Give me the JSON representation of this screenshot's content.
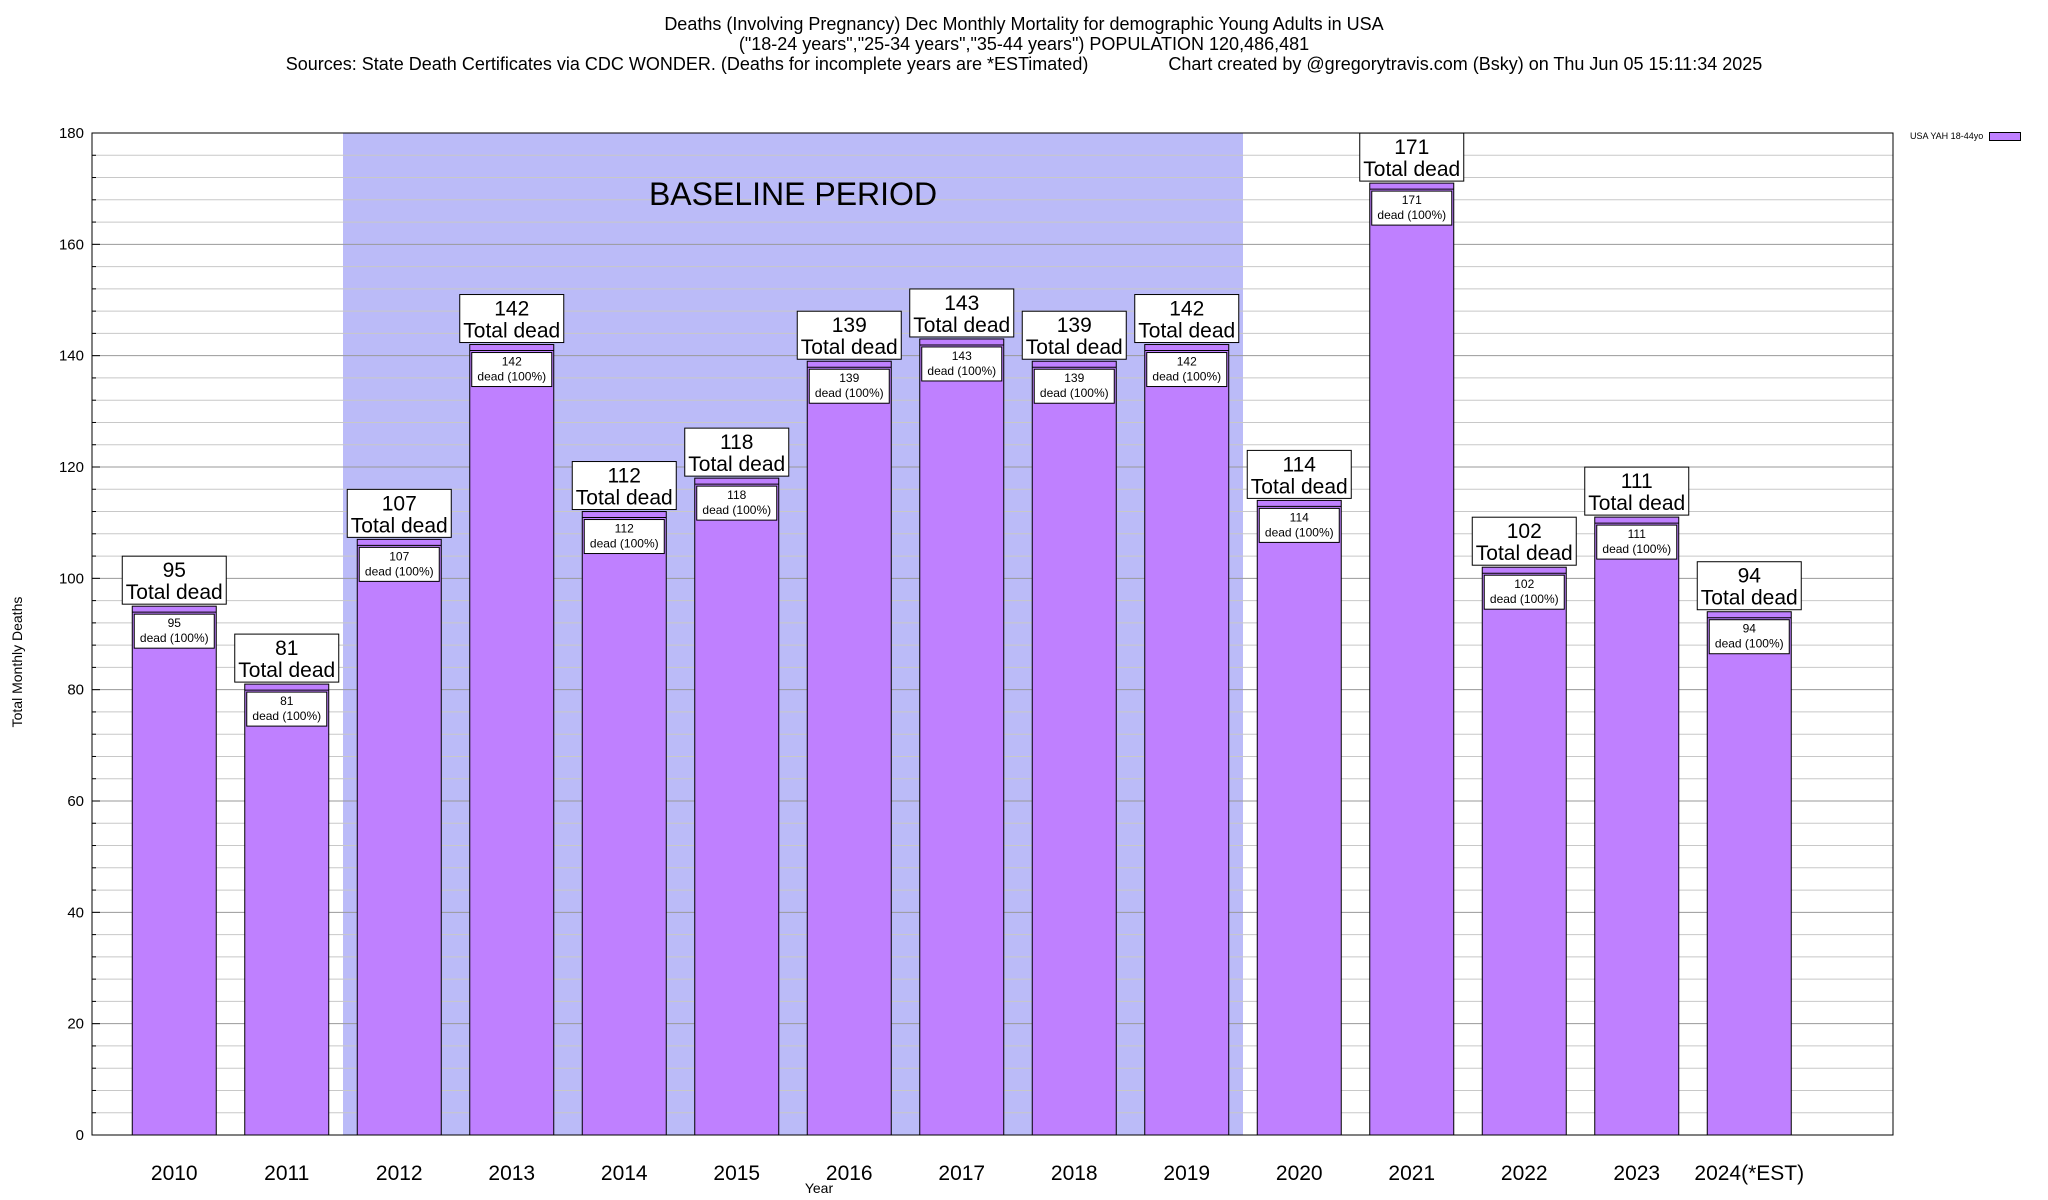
{
  "title": {
    "line1": "Deaths (Involving Pregnancy) Dec Monthly Mortality for demographic Young Adults in USA",
    "line2": "(\"18-24 years\",\"25-34 years\",\"35-44 years\") POPULATION 120,486,481",
    "line3": "Sources: State Death Certificates via CDC WONDER. (Deaths for incomplete years are *ESTimated)                Chart created by @gregorytravis.com (Bsky) on Thu Jun 05 15:11:34 2025"
  },
  "chart_data": {
    "type": "bar",
    "categories": [
      "2010",
      "2011",
      "2012",
      "2013",
      "2014",
      "2015",
      "2016",
      "2017",
      "2018",
      "2019",
      "2020",
      "2021",
      "2022",
      "2023",
      "2024(*EST)"
    ],
    "series": [
      {
        "name": "USA YAH 18-44yo",
        "values": [
          95,
          81,
          107,
          142,
          112,
          118,
          139,
          143,
          139,
          142,
          114,
          171,
          102,
          111,
          94
        ]
      }
    ],
    "xlabel": "Year",
    "ylabel": "Total Monthly Deaths",
    "ylim": [
      0,
      180
    ],
    "yticks": [
      0,
      20,
      40,
      60,
      80,
      100,
      120,
      140,
      160,
      180
    ],
    "top_label_suffix": "Total dead",
    "inner_label_suffix": "dead (100%)",
    "baseline": {
      "label": "BASELINE PERIOD",
      "from": "2012",
      "to": "2019",
      "color": "#bbbbf8"
    },
    "bar_color": "#bf80ff",
    "grid": true,
    "legend_position": "top-right"
  }
}
